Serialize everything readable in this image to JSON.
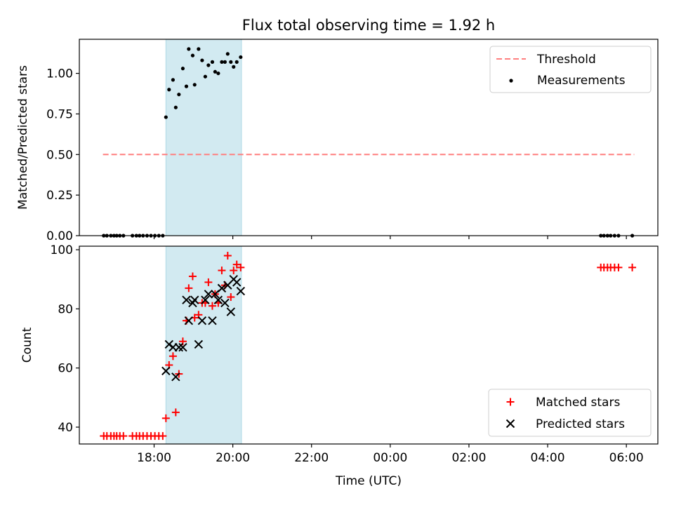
{
  "chart_data": {
    "title": "Flux total observing time = 1.92 h",
    "xlabel": "Time (UTC)",
    "x_unit": "hours since 00:00 UTC (values >24 are the next day)",
    "xlim": [
      16.1,
      30.8
    ],
    "xticks": [
      {
        "value": 18,
        "label": "18:00"
      },
      {
        "value": 20,
        "label": "20:00"
      },
      {
        "value": 22,
        "label": "22:00"
      },
      {
        "value": 24,
        "label": "00:00"
      },
      {
        "value": 26,
        "label": "02:00"
      },
      {
        "value": 28,
        "label": "04:00"
      },
      {
        "value": 30,
        "label": "06:00"
      }
    ],
    "observing_window": {
      "start": 18.3,
      "end": 20.22,
      "color": "#add8e6"
    },
    "top": {
      "type": "scatter",
      "ylabel": "Matched/Predicted stars",
      "ylim": [
        0,
        1.21
      ],
      "yticks": [
        0,
        0.25,
        0.5,
        0.75,
        1.0
      ],
      "ytick_labels": [
        "0.00",
        "0.25",
        "0.50",
        "0.75",
        "1.00"
      ],
      "threshold": {
        "name": "Threshold",
        "value": 0.5,
        "x_start": 16.7,
        "x_end": 30.2,
        "color": "#ff7f7f"
      },
      "measurements": {
        "name": "Measurements",
        "color": "#000000",
        "points": [
          [
            16.72,
            0
          ],
          [
            16.8,
            0
          ],
          [
            16.9,
            0
          ],
          [
            16.98,
            0
          ],
          [
            17.05,
            0
          ],
          [
            17.13,
            0
          ],
          [
            17.22,
            0
          ],
          [
            17.45,
            0
          ],
          [
            17.55,
            0
          ],
          [
            17.63,
            0
          ],
          [
            17.72,
            0
          ],
          [
            17.82,
            0
          ],
          [
            17.92,
            0
          ],
          [
            18.02,
            0
          ],
          [
            18.12,
            0
          ],
          [
            18.22,
            0
          ],
          [
            18.3,
            0.73
          ],
          [
            18.38,
            0.9
          ],
          [
            18.48,
            0.96
          ],
          [
            18.55,
            0.79
          ],
          [
            18.63,
            0.87
          ],
          [
            18.73,
            1.03
          ],
          [
            18.82,
            0.92
          ],
          [
            18.88,
            1.15
          ],
          [
            18.98,
            1.11
          ],
          [
            19.03,
            0.93
          ],
          [
            19.13,
            1.15
          ],
          [
            19.22,
            1.08
          ],
          [
            19.3,
            0.98
          ],
          [
            19.38,
            1.05
          ],
          [
            19.48,
            1.07
          ],
          [
            19.55,
            1.01
          ],
          [
            19.63,
            1.0
          ],
          [
            19.72,
            1.07
          ],
          [
            19.8,
            1.07
          ],
          [
            19.87,
            1.12
          ],
          [
            19.95,
            1.07
          ],
          [
            20.02,
            1.04
          ],
          [
            20.1,
            1.07
          ],
          [
            20.2,
            1.1
          ],
          [
            29.35,
            0
          ],
          [
            29.43,
            0
          ],
          [
            29.52,
            0
          ],
          [
            29.6,
            0
          ],
          [
            29.7,
            0
          ],
          [
            29.8,
            0
          ],
          [
            30.15,
            0
          ]
        ]
      }
    },
    "bottom": {
      "type": "scatter",
      "ylabel": "Count",
      "ylim": [
        34.3,
        101.2
      ],
      "yticks": [
        40,
        60,
        80,
        100
      ],
      "ytick_labels": [
        "40",
        "60",
        "80",
        "100"
      ],
      "series": [
        {
          "name": "Matched stars",
          "marker": "plus",
          "color": "#ff0000",
          "points": [
            [
              16.72,
              37
            ],
            [
              16.8,
              37
            ],
            [
              16.9,
              37
            ],
            [
              16.98,
              37
            ],
            [
              17.05,
              37
            ],
            [
              17.13,
              37
            ],
            [
              17.22,
              37
            ],
            [
              17.45,
              37
            ],
            [
              17.55,
              37
            ],
            [
              17.63,
              37
            ],
            [
              17.72,
              37
            ],
            [
              17.82,
              37
            ],
            [
              17.92,
              37
            ],
            [
              18.02,
              37
            ],
            [
              18.12,
              37
            ],
            [
              18.22,
              37
            ],
            [
              18.3,
              43
            ],
            [
              18.38,
              61
            ],
            [
              18.48,
              64
            ],
            [
              18.55,
              45
            ],
            [
              18.63,
              58
            ],
            [
              18.73,
              69
            ],
            [
              18.82,
              76
            ],
            [
              18.88,
              87
            ],
            [
              18.98,
              91
            ],
            [
              19.03,
              77
            ],
            [
              19.13,
              78
            ],
            [
              19.22,
              82
            ],
            [
              19.3,
              82
            ],
            [
              19.38,
              89
            ],
            [
              19.48,
              81
            ],
            [
              19.55,
              85
            ],
            [
              19.63,
              82
            ],
            [
              19.72,
              93
            ],
            [
              19.8,
              88
            ],
            [
              19.87,
              98
            ],
            [
              19.95,
              84
            ],
            [
              20.02,
              93
            ],
            [
              20.1,
              95
            ],
            [
              20.2,
              94
            ],
            [
              29.35,
              94
            ],
            [
              29.43,
              94
            ],
            [
              29.52,
              94
            ],
            [
              29.6,
              94
            ],
            [
              29.7,
              94
            ],
            [
              29.8,
              94
            ],
            [
              30.15,
              94
            ]
          ]
        },
        {
          "name": "Predicted stars",
          "marker": "x",
          "color": "#000000",
          "points": [
            [
              18.3,
              59
            ],
            [
              18.38,
              68
            ],
            [
              18.48,
              67
            ],
            [
              18.55,
              57
            ],
            [
              18.63,
              67
            ],
            [
              18.73,
              67
            ],
            [
              18.82,
              83
            ],
            [
              18.88,
              76
            ],
            [
              18.98,
              82
            ],
            [
              19.03,
              83
            ],
            [
              19.13,
              68
            ],
            [
              19.22,
              76
            ],
            [
              19.3,
              83
            ],
            [
              19.38,
              85
            ],
            [
              19.48,
              76
            ],
            [
              19.55,
              85
            ],
            [
              19.63,
              83
            ],
            [
              19.72,
              87
            ],
            [
              19.8,
              82
            ],
            [
              19.87,
              88
            ],
            [
              19.95,
              79
            ],
            [
              20.02,
              90
            ],
            [
              20.1,
              89
            ],
            [
              20.2,
              86
            ]
          ]
        }
      ]
    }
  }
}
